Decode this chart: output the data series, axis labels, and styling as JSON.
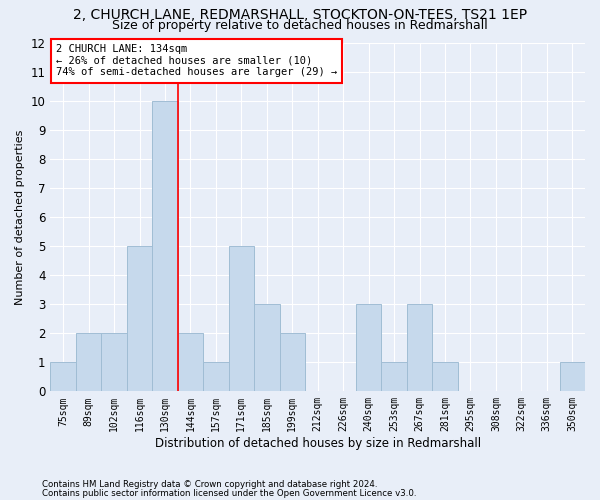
{
  "title1": "2, CHURCH LANE, REDMARSHALL, STOCKTON-ON-TEES, TS21 1EP",
  "title2": "Size of property relative to detached houses in Redmarshall",
  "xlabel": "Distribution of detached houses by size in Redmarshall",
  "ylabel": "Number of detached properties",
  "categories": [
    "75sqm",
    "89sqm",
    "102sqm",
    "116sqm",
    "130sqm",
    "144sqm",
    "157sqm",
    "171sqm",
    "185sqm",
    "199sqm",
    "212sqm",
    "226sqm",
    "240sqm",
    "253sqm",
    "267sqm",
    "281sqm",
    "295sqm",
    "308sqm",
    "322sqm",
    "336sqm",
    "350sqm"
  ],
  "values": [
    1,
    2,
    2,
    5,
    10,
    2,
    1,
    5,
    3,
    2,
    0,
    0,
    3,
    1,
    3,
    1,
    0,
    0,
    0,
    0,
    1
  ],
  "bar_color": "#c6d9ec",
  "bar_edge_color": "#a0bdd4",
  "ylim": [
    0,
    12
  ],
  "yticks": [
    0,
    1,
    2,
    3,
    4,
    5,
    6,
    7,
    8,
    9,
    10,
    11,
    12
  ],
  "red_line_x": 4.5,
  "annotation_line1": "2 CHURCH LANE: 134sqm",
  "annotation_line2": "← 26% of detached houses are smaller (10)",
  "annotation_line3": "74% of semi-detached houses are larger (29) →",
  "footnote1": "Contains HM Land Registry data © Crown copyright and database right 2024.",
  "footnote2": "Contains public sector information licensed under the Open Government Licence v3.0.",
  "background_color": "#e8eef8",
  "grid_color": "#ffffff",
  "title1_fontsize": 10,
  "title2_fontsize": 9
}
